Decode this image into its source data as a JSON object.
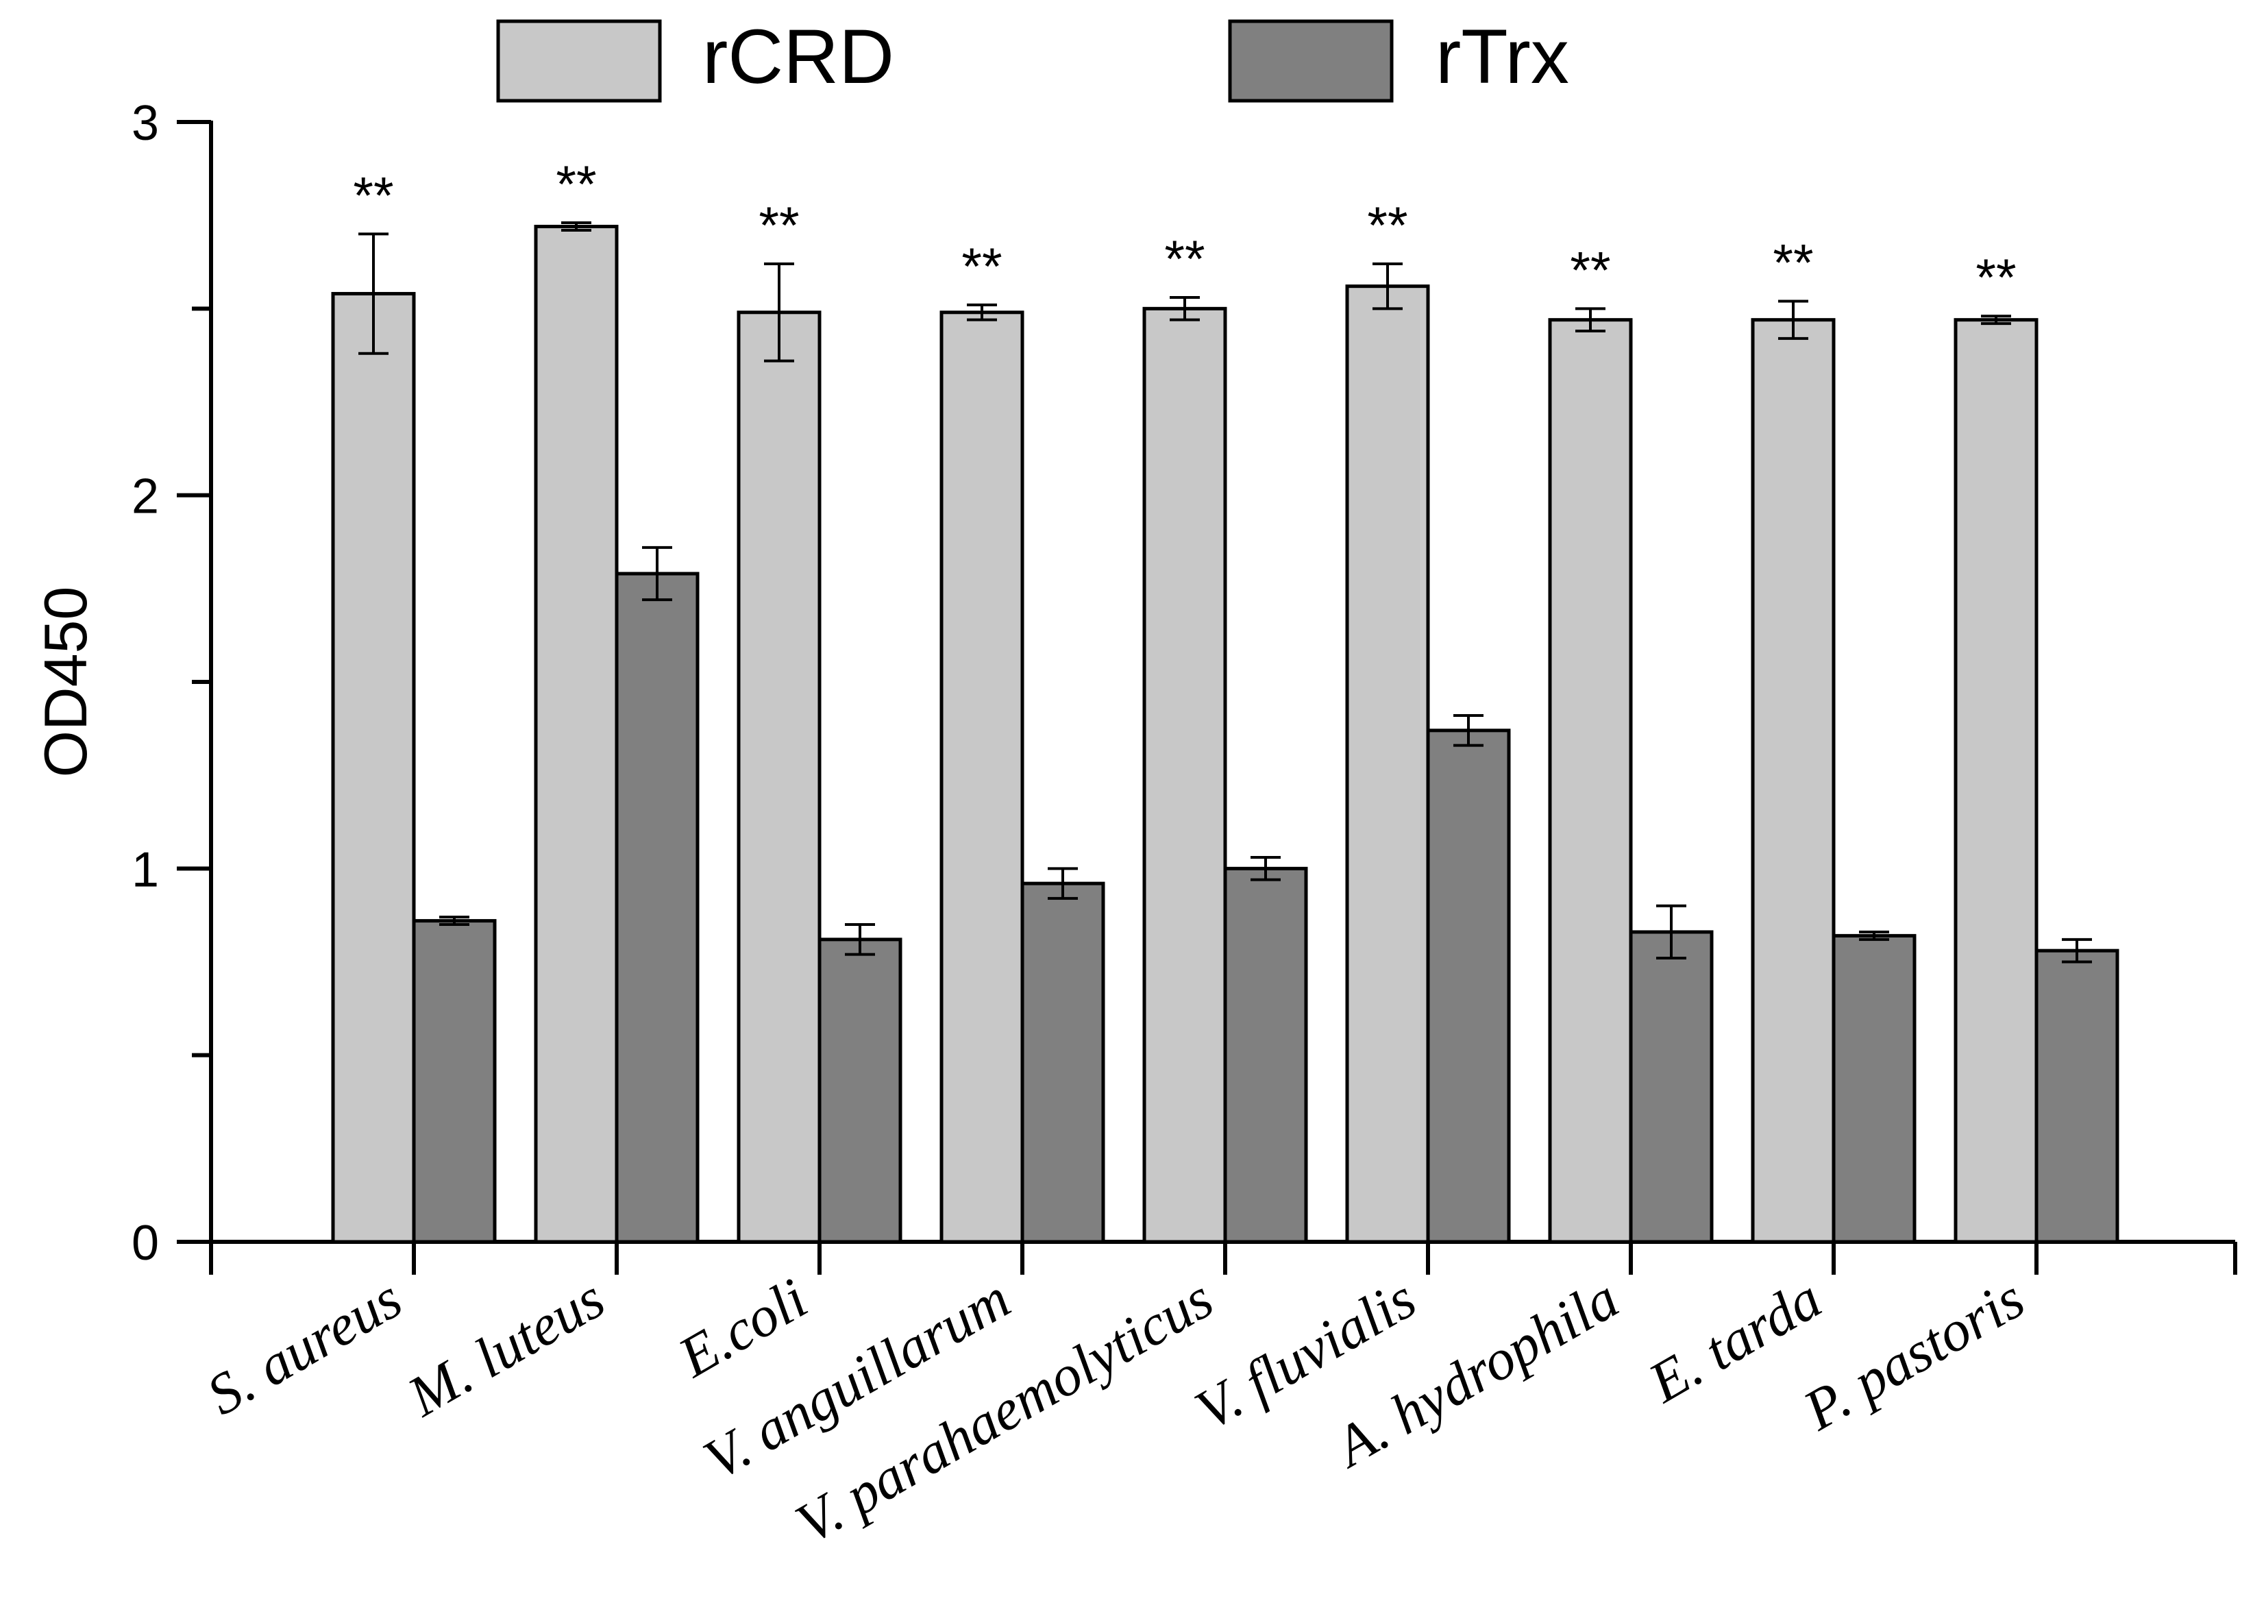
{
  "chart_data": {
    "type": "bar",
    "title": "",
    "xlabel": "",
    "ylabel": "OD450",
    "ylim": [
      0,
      3
    ],
    "yticks": [
      0,
      1,
      2,
      3
    ],
    "grid": false,
    "legend_position": "top",
    "categories": [
      "S. aureus",
      "M. luteus",
      "E.coli",
      "V. anguillarum",
      "V. parahaemolyticus",
      "V. fluvialis",
      "A. hydrophila",
      "E. tarda",
      "P. pastoris"
    ],
    "series": [
      {
        "name": "rCRD",
        "color": "#c8c8c8",
        "values": [
          2.54,
          2.72,
          2.49,
          2.49,
          2.5,
          2.56,
          2.47,
          2.47,
          2.47
        ],
        "errors": [
          0.16,
          0.01,
          0.13,
          0.02,
          0.03,
          0.06,
          0.03,
          0.05,
          0.01
        ]
      },
      {
        "name": "rTrx",
        "color": "#808080",
        "values": [
          0.86,
          1.79,
          0.81,
          0.96,
          1.0,
          1.37,
          0.83,
          0.82,
          0.78
        ],
        "errors": [
          0.01,
          0.07,
          0.04,
          0.04,
          0.03,
          0.04,
          0.07,
          0.01,
          0.03
        ]
      }
    ],
    "annotations": [
      "**",
      "**",
      "**",
      "**",
      "**",
      "**",
      "**",
      "**",
      "**"
    ]
  }
}
